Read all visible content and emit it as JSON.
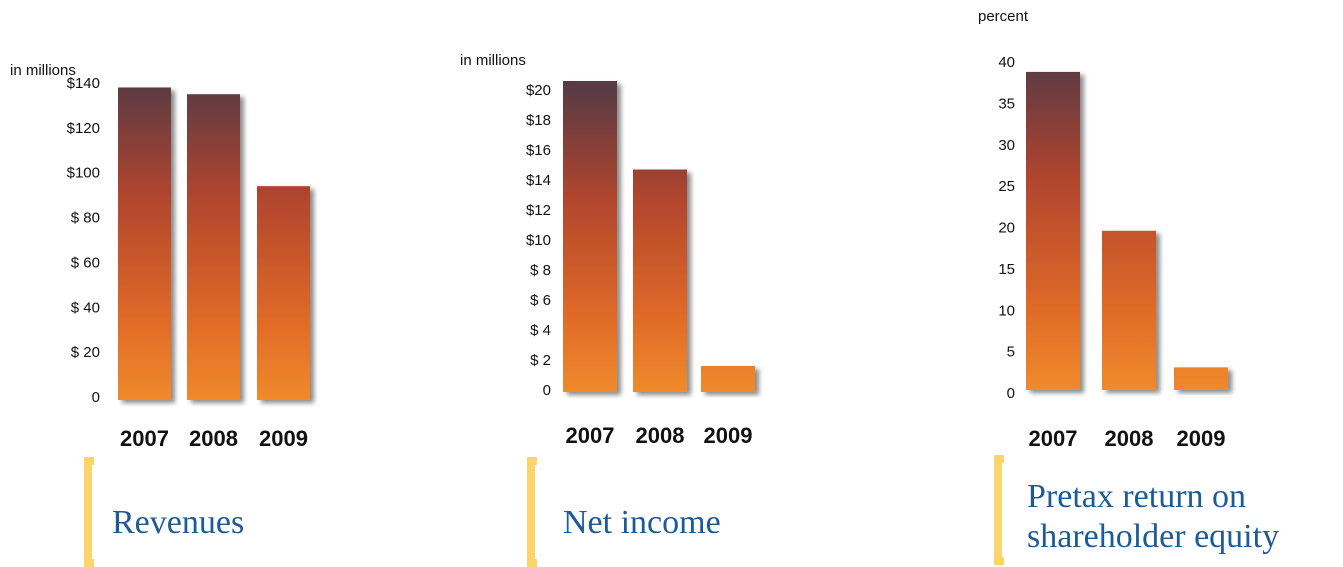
{
  "colors": {
    "bar_top": "#5a3a44",
    "bar_mid": "#b0452e",
    "bar_bottom": "#f08a2a",
    "bracket": "#fbd46b",
    "caption": "#1d5a96"
  },
  "chart_data": [
    {
      "type": "bar",
      "unit_label": "in millions",
      "caption": "Revenues",
      "categories": [
        "2007",
        "2008",
        "2009"
      ],
      "values": [
        138,
        135,
        94
      ],
      "ylim": [
        0,
        140
      ],
      "yticks": [
        0,
        20,
        40,
        60,
        80,
        100,
        120,
        140
      ],
      "ytick_labels": [
        "0",
        "$ 20",
        "$ 40",
        "$ 60",
        "$ 80",
        "$100",
        "$120",
        "$140"
      ],
      "grid": false
    },
    {
      "type": "bar",
      "unit_label": "in millions",
      "caption": "Net income",
      "categories": [
        "2007",
        "2008",
        "2009"
      ],
      "values": [
        20.6,
        14.7,
        1.6
      ],
      "ylim": [
        0,
        20
      ],
      "yticks": [
        0,
        2,
        4,
        6,
        8,
        10,
        12,
        14,
        16,
        18,
        20
      ],
      "ytick_labels": [
        "0",
        "$ 2",
        "$ 4",
        "$ 6",
        "$ 8",
        "$10",
        "$12",
        "$14",
        "$16",
        "$18",
        "$20"
      ],
      "grid": false
    },
    {
      "type": "bar",
      "unit_label": "percent",
      "caption_lines": [
        "Pretax return on",
        "shareholder equity"
      ],
      "categories": [
        "2007",
        "2008",
        "2009"
      ],
      "values": [
        38.8,
        19.6,
        3.1
      ],
      "ylim": [
        0,
        40
      ],
      "yticks": [
        0,
        5,
        10,
        15,
        20,
        25,
        30,
        35,
        40
      ],
      "ytick_labels": [
        "0",
        "5",
        "10",
        "15",
        "20",
        "25",
        "30",
        "35",
        "40"
      ],
      "grid": false
    }
  ]
}
